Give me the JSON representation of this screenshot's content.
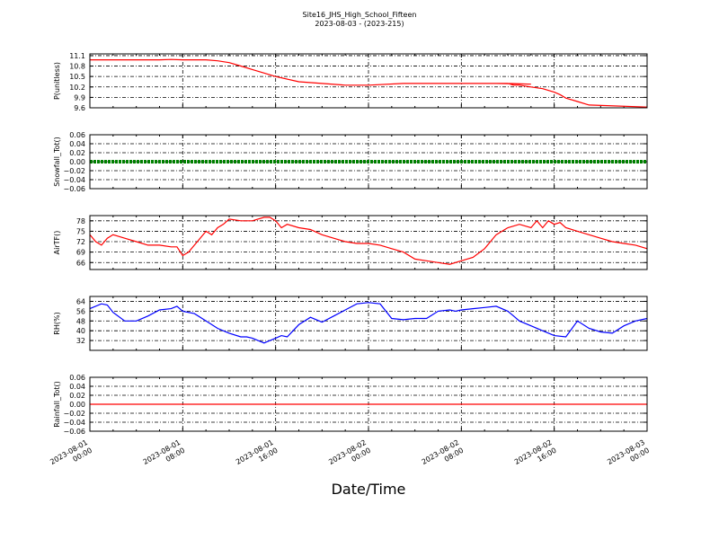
{
  "figure": {
    "title_line1": "Site16_JHS_High_School_Fifteen",
    "title_line2": "2023-08-03 - (2023-215)",
    "xlabel": "Date/Time",
    "x_ticks": [
      {
        "line1": "2023-08-01",
        "line2": "00:00"
      },
      {
        "line1": "2023-08-01",
        "line2": "08:00"
      },
      {
        "line1": "2023-08-01",
        "line2": "16:00"
      },
      {
        "line1": "2023-08-02",
        "line2": "00:00"
      },
      {
        "line1": "2023-08-02",
        "line2": "08:00"
      },
      {
        "line1": "2023-08-02",
        "line2": "16:00"
      },
      {
        "line1": "2023-08-03",
        "line2": "00:00"
      }
    ],
    "xlim": [
      "2023-08-01 00:00",
      "2023-08-03 00:00"
    ]
  },
  "chart_data": [
    {
      "type": "line",
      "ylabel": "P(unitless)",
      "ylim": [
        9.6,
        11.15
      ],
      "yticks": [
        "9.6",
        "9.9",
        "10.2",
        "10.5",
        "10.8",
        "11.1"
      ],
      "grid": true,
      "color": "#ff0000",
      "series": [
        {
          "x_hours": [
            0,
            6,
            7,
            8,
            10,
            11,
            12,
            13,
            14,
            15,
            16,
            18,
            20,
            22,
            24,
            27,
            30,
            34,
            36,
            38,
            35,
            36,
            36.5,
            37,
            38,
            39,
            40,
            40.5,
            41,
            42,
            43,
            48
          ],
          "values": [
            10.98,
            10.98,
            10.99,
            10.98,
            10.98,
            10.95,
            10.9,
            10.8,
            10.7,
            10.6,
            10.5,
            10.35,
            10.3,
            10.25,
            10.25,
            10.3,
            10.3,
            10.3,
            10.3,
            10.28,
            10.3,
            10.3,
            10.25,
            10.25,
            10.2,
            10.15,
            10.05,
            9.98,
            9.88,
            9.78,
            9.68,
            9.62
          ]
        }
      ]
    },
    {
      "type": "line",
      "ylabel": "Snowfall_Tot()",
      "ylim": [
        -0.06,
        0.06
      ],
      "yticks": [
        "−0.06",
        "−0.04",
        "−0.02",
        "0.00",
        "0.02",
        "0.04",
        "0.06"
      ],
      "grid": true,
      "color": "#008000",
      "series": [
        {
          "x_hours": [
            0,
            48
          ],
          "values": [
            0,
            0
          ]
        }
      ]
    },
    {
      "type": "line",
      "ylabel": "AirTF()",
      "ylim": [
        64,
        79.5
      ],
      "yticks": [
        "66",
        "69",
        "72",
        "75",
        "78"
      ],
      "grid": true,
      "color": "#ff0000",
      "series": [
        {
          "x_hours": [
            0,
            0.5,
            1,
            1.5,
            2,
            3,
            4,
            5,
            6,
            7,
            7.5,
            8,
            8.5,
            9,
            9.5,
            10,
            10.5,
            11,
            11.5,
            12,
            13,
            14,
            15,
            15.5,
            16,
            16.5,
            17,
            18,
            19,
            20,
            21,
            22,
            23,
            24,
            25,
            26,
            27,
            28,
            29,
            30,
            31,
            32,
            33,
            34,
            35,
            36,
            37,
            38,
            38.5,
            39,
            39.5,
            40,
            40.5,
            41,
            42,
            43,
            44,
            45,
            46,
            47,
            48
          ],
          "values": [
            74,
            72,
            71,
            73,
            74,
            73,
            72,
            71,
            71,
            70.5,
            70.5,
            68,
            69,
            71,
            73,
            75,
            74,
            76,
            77,
            78.5,
            78,
            78,
            79,
            79,
            78,
            76,
            77,
            76,
            75.5,
            74,
            73,
            72,
            71.5,
            71.5,
            71,
            70,
            69,
            67,
            66.5,
            66,
            65.5,
            66.5,
            67.5,
            70,
            74,
            76,
            77,
            76,
            78,
            76,
            78,
            77,
            77.5,
            76,
            75,
            74,
            73,
            72,
            71.5,
            71,
            70
          ]
        }
      ]
    },
    {
      "type": "line",
      "ylabel": "RH(%)",
      "ylim": [
        24,
        68
      ],
      "yticks": [
        "32",
        "40",
        "48",
        "56",
        "64"
      ],
      "grid": true,
      "color": "#0000ff",
      "series": [
        {
          "x_hours": [
            0,
            1,
            1.5,
            2,
            3,
            4,
            5,
            6,
            7,
            7.5,
            8,
            9,
            10,
            11,
            12,
            13,
            13.5,
            14,
            15,
            16,
            16.5,
            17,
            18,
            19,
            20,
            21,
            22,
            23,
            24,
            25,
            26,
            27,
            28,
            29,
            30,
            31,
            31.5,
            32,
            33,
            34,
            35,
            36,
            36.5,
            37,
            38,
            39,
            40,
            41,
            42,
            43,
            44,
            45,
            46,
            47,
            48
          ],
          "values": [
            58,
            62,
            61,
            55,
            48,
            48,
            52,
            57,
            58,
            60,
            56,
            54,
            48,
            42,
            38,
            35,
            35,
            34,
            30,
            34,
            36,
            35,
            45,
            51,
            47,
            52,
            57,
            62,
            63,
            62,
            50,
            49,
            50,
            50,
            56,
            57,
            56,
            57,
            58,
            59,
            60,
            56,
            52,
            48,
            44,
            40,
            36,
            35,
            48,
            42,
            39,
            38,
            44,
            48,
            50
          ]
        }
      ]
    },
    {
      "type": "line",
      "ylabel": "Rainfall_Tot()",
      "ylim": [
        -0.06,
        0.06
      ],
      "yticks": [
        "−0.06",
        "−0.04",
        "−0.02",
        "0.00",
        "0.02",
        "0.04",
        "0.06"
      ],
      "grid": true,
      "color": "#ff0000",
      "series": [
        {
          "x_hours": [
            0,
            48
          ],
          "values": [
            0,
            0
          ]
        }
      ]
    }
  ]
}
